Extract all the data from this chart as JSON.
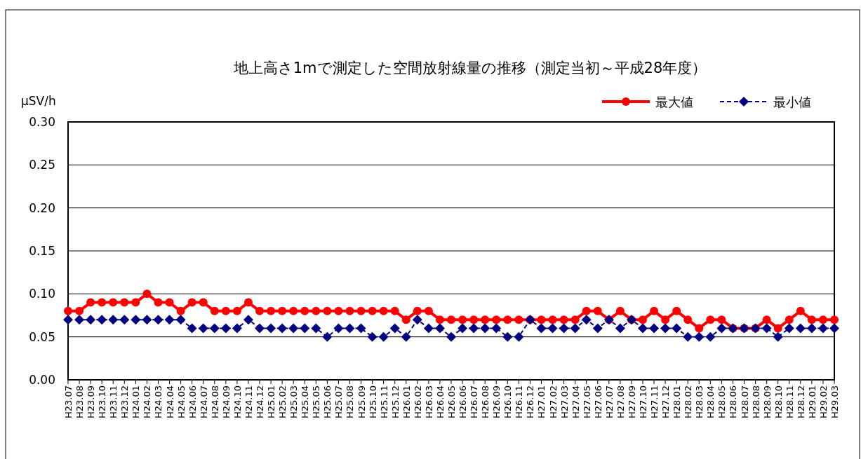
{
  "chart_data": {
    "type": "line",
    "title": "地上高さ1mで測定した空間放射線量の推移（測定当初～平成28年度）",
    "ylabel": "μSV/h",
    "categories": [
      "H23.07",
      "H23.08",
      "H23.09",
      "H23.10",
      "H23.11",
      "H23.12",
      "H24.01",
      "H24.02",
      "H24.03",
      "H24.04",
      "H24.05",
      "H24.06",
      "H24.07",
      "H24.08",
      "H24.09",
      "H24.10",
      "H24.11",
      "H24.12",
      "H25.01",
      "H25.02",
      "H25.03",
      "H25.04",
      "H25.05",
      "H25.06",
      "H25.07",
      "H25.08",
      "H25.09",
      "H25.10",
      "H25.11",
      "H25.12",
      "H26.01",
      "H26.02",
      "H26.03",
      "H26.04",
      "H26.05",
      "H26.06",
      "H26.07",
      "H26.08",
      "H26.09",
      "H26.10",
      "H26.11",
      "H26.12",
      "H27.01",
      "H27.02",
      "H27.03",
      "H27.04",
      "H27.05",
      "H27.06",
      "H27.07",
      "H27.08",
      "H27.09",
      "H27.10",
      "H27.11",
      "H27.12",
      "H28.01",
      "H28.02",
      "H28.03",
      "H28.04",
      "H28.05",
      "H28.06",
      "H28.07",
      "H28.08",
      "H28.09",
      "H28.10",
      "H28.11",
      "H28.12",
      "H29.01",
      "H29.02",
      "H29.03"
    ],
    "series": [
      {
        "name": "最大値",
        "color": "#ff0000",
        "marker": "circle",
        "line_style": "solid",
        "values": [
          0.08,
          0.08,
          0.09,
          0.09,
          0.09,
          0.09,
          0.09,
          0.1,
          0.09,
          0.09,
          0.08,
          0.09,
          0.09,
          0.08,
          0.08,
          0.08,
          0.09,
          0.08,
          0.08,
          0.08,
          0.08,
          0.08,
          0.08,
          0.08,
          0.08,
          0.08,
          0.08,
          0.08,
          0.08,
          0.08,
          0.07,
          0.08,
          0.08,
          0.07,
          0.07,
          0.07,
          0.07,
          0.07,
          0.07,
          0.07,
          0.07,
          0.07,
          0.07,
          0.07,
          0.07,
          0.07,
          0.08,
          0.08,
          0.07,
          0.08,
          0.07,
          0.07,
          0.08,
          0.07,
          0.08,
          0.07,
          0.06,
          0.07,
          0.07,
          0.06,
          0.06,
          0.06,
          0.07,
          0.06,
          0.07,
          0.08,
          0.07,
          0.07,
          0.07
        ]
      },
      {
        "name": "最小値",
        "color": "#000080",
        "marker": "diamond",
        "line_style": "dashed",
        "values": [
          0.07,
          0.07,
          0.07,
          0.07,
          0.07,
          0.07,
          0.07,
          0.07,
          0.07,
          0.07,
          0.07,
          0.06,
          0.06,
          0.06,
          0.06,
          0.06,
          0.07,
          0.06,
          0.06,
          0.06,
          0.06,
          0.06,
          0.06,
          0.05,
          0.06,
          0.06,
          0.06,
          0.05,
          0.05,
          0.06,
          0.05,
          0.07,
          0.06,
          0.06,
          0.05,
          0.06,
          0.06,
          0.06,
          0.06,
          0.05,
          0.05,
          0.07,
          0.06,
          0.06,
          0.06,
          0.06,
          0.07,
          0.06,
          0.07,
          0.06,
          0.07,
          0.06,
          0.06,
          0.06,
          0.06,
          0.05,
          0.05,
          0.05,
          0.06,
          0.06,
          0.06,
          0.06,
          0.06,
          0.05,
          0.06,
          0.06,
          0.06,
          0.06,
          0.06
        ]
      }
    ],
    "ylim": [
      0,
      0.3
    ],
    "yticks": [
      {
        "value": 0,
        "label": "0.00"
      },
      {
        "value": 0.05,
        "label": "0.05"
      },
      {
        "value": 0.1,
        "label": "0.10"
      },
      {
        "value": 0.15,
        "label": "0.15"
      },
      {
        "value": 0.2,
        "label": "0.20"
      },
      {
        "value": 0.25,
        "label": "0.25"
      },
      {
        "value": 0.3,
        "label": "0.30"
      }
    ],
    "grid": "y",
    "legend": "top right"
  }
}
